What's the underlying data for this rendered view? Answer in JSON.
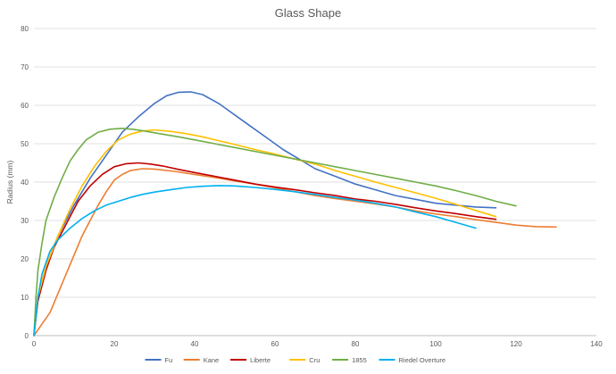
{
  "chart_data": {
    "type": "line",
    "title": "Glass Shape",
    "xlabel": "",
    "ylabel": "Radius (mm)",
    "xlim": [
      0,
      140
    ],
    "ylim": [
      0,
      80
    ],
    "x_ticks": [
      "0",
      "20",
      "40",
      "60",
      "80",
      "100",
      "120",
      "140"
    ],
    "y_ticks": [
      "0",
      "10",
      "20",
      "30",
      "40",
      "50",
      "60",
      "70",
      "80"
    ],
    "grid": "horizontal",
    "legend_position": "bottom",
    "series": [
      {
        "name": "Fu",
        "color": "#4472C4",
        "points": [
          [
            0,
            0
          ],
          [
            1,
            10
          ],
          [
            3,
            18
          ],
          [
            6,
            26
          ],
          [
            10,
            34
          ],
          [
            14,
            41
          ],
          [
            18,
            47
          ],
          [
            22,
            53
          ],
          [
            26,
            57
          ],
          [
            30,
            60.5
          ],
          [
            33,
            62.5
          ],
          [
            36,
            63.4
          ],
          [
            39,
            63.5
          ],
          [
            42,
            62.8
          ],
          [
            46,
            60.5
          ],
          [
            50,
            57.5
          ],
          [
            54,
            54.5
          ],
          [
            58,
            51.5
          ],
          [
            62,
            48.5
          ],
          [
            66,
            46
          ],
          [
            70,
            43.5
          ],
          [
            75,
            41.5
          ],
          [
            80,
            39.5
          ],
          [
            85,
            38
          ],
          [
            90,
            36.5
          ],
          [
            95,
            35.5
          ],
          [
            100,
            34.5
          ],
          [
            105,
            34
          ],
          [
            110,
            33.5
          ],
          [
            115,
            33.3
          ]
        ]
      },
      {
        "name": "Kane",
        "color": "#ED7D31",
        "points": [
          [
            0,
            0
          ],
          [
            2,
            3
          ],
          [
            4,
            6
          ],
          [
            6,
            11
          ],
          [
            8,
            16
          ],
          [
            10,
            21
          ],
          [
            12,
            26
          ],
          [
            14,
            30
          ],
          [
            16,
            34
          ],
          [
            18,
            37.5
          ],
          [
            20,
            40.5
          ],
          [
            22,
            42
          ],
          [
            24,
            43
          ],
          [
            27,
            43.5
          ],
          [
            30,
            43.4
          ],
          [
            35,
            42.8
          ],
          [
            40,
            42
          ],
          [
            45,
            41.2
          ],
          [
            50,
            40.3
          ],
          [
            55,
            39.5
          ],
          [
            60,
            38.5
          ],
          [
            65,
            37.5
          ],
          [
            70,
            36.5
          ],
          [
            75,
            35.7
          ],
          [
            80,
            35
          ],
          [
            85,
            34.3
          ],
          [
            90,
            33.5
          ],
          [
            95,
            32.5
          ],
          [
            100,
            31.7
          ],
          [
            105,
            31
          ],
          [
            110,
            30.2
          ],
          [
            115,
            29.5
          ],
          [
            120,
            28.8
          ],
          [
            125,
            28.4
          ],
          [
            130,
            28.3
          ]
        ]
      },
      {
        "name": "Liberte",
        "color": "#C00000",
        "points": [
          [
            0,
            0
          ],
          [
            1,
            9
          ],
          [
            3,
            17
          ],
          [
            5,
            23
          ],
          [
            8,
            29
          ],
          [
            11,
            35
          ],
          [
            14,
            39
          ],
          [
            17,
            42
          ],
          [
            20,
            44
          ],
          [
            23,
            44.8
          ],
          [
            26,
            45
          ],
          [
            29,
            44.7
          ],
          [
            32,
            44.2
          ],
          [
            36,
            43.3
          ],
          [
            40,
            42.5
          ],
          [
            45,
            41.5
          ],
          [
            50,
            40.5
          ],
          [
            55,
            39.5
          ],
          [
            60,
            38.7
          ],
          [
            65,
            38
          ],
          [
            70,
            37.2
          ],
          [
            75,
            36.5
          ],
          [
            80,
            35.6
          ],
          [
            85,
            35
          ],
          [
            90,
            34.2
          ],
          [
            95,
            33.3
          ],
          [
            100,
            32.5
          ],
          [
            105,
            31.8
          ],
          [
            110,
            31
          ],
          [
            115,
            30.3
          ]
        ]
      },
      {
        "name": "Cru",
        "color": "#FFC000",
        "points": [
          [
            0,
            0
          ],
          [
            1,
            10
          ],
          [
            3,
            18
          ],
          [
            6,
            26
          ],
          [
            9,
            33
          ],
          [
            12,
            39
          ],
          [
            15,
            44
          ],
          [
            18,
            48
          ],
          [
            21,
            51
          ],
          [
            24,
            52.5
          ],
          [
            27,
            53.3
          ],
          [
            30,
            53.6
          ],
          [
            34,
            53.2
          ],
          [
            38,
            52.6
          ],
          [
            42,
            51.8
          ],
          [
            46,
            50.8
          ],
          [
            50,
            49.8
          ],
          [
            55,
            48.5
          ],
          [
            60,
            47.3
          ],
          [
            65,
            46
          ],
          [
            70,
            44.7
          ],
          [
            75,
            43
          ],
          [
            80,
            41.5
          ],
          [
            85,
            40
          ],
          [
            90,
            38.6
          ],
          [
            95,
            37.2
          ],
          [
            100,
            35.8
          ],
          [
            105,
            34.2
          ],
          [
            110,
            32.6
          ],
          [
            115,
            31
          ]
        ]
      },
      {
        "name": "1855",
        "color": "#70AD47",
        "points": [
          [
            0,
            0
          ],
          [
            0.5,
            10
          ],
          [
            1,
            17
          ],
          [
            2,
            24
          ],
          [
            3,
            30
          ],
          [
            5,
            36
          ],
          [
            7,
            41
          ],
          [
            9,
            45.5
          ],
          [
            11,
            48.5
          ],
          [
            13,
            51
          ],
          [
            16,
            53
          ],
          [
            19,
            53.8
          ],
          [
            22,
            54
          ],
          [
            25,
            53.7
          ],
          [
            28,
            53.2
          ],
          [
            32,
            52.5
          ],
          [
            36,
            51.8
          ],
          [
            40,
            51
          ],
          [
            45,
            50
          ],
          [
            50,
            49
          ],
          [
            55,
            48
          ],
          [
            60,
            47
          ],
          [
            65,
            46
          ],
          [
            70,
            45
          ],
          [
            75,
            44
          ],
          [
            80,
            43
          ],
          [
            85,
            42
          ],
          [
            90,
            41
          ],
          [
            95,
            40
          ],
          [
            100,
            39
          ],
          [
            105,
            37.8
          ],
          [
            110,
            36.5
          ],
          [
            115,
            35
          ],
          [
            120,
            33.8
          ]
        ]
      },
      {
        "name": "Riedel Overture",
        "color": "#00B0F0",
        "points": [
          [
            0,
            0
          ],
          [
            1,
            10
          ],
          [
            2,
            16
          ],
          [
            4,
            22
          ],
          [
            6,
            25
          ],
          [
            9,
            28
          ],
          [
            12,
            30.5
          ],
          [
            15,
            32.5
          ],
          [
            18,
            34
          ],
          [
            21,
            35
          ],
          [
            24,
            36
          ],
          [
            27,
            36.8
          ],
          [
            30,
            37.4
          ],
          [
            34,
            38
          ],
          [
            38,
            38.6
          ],
          [
            42,
            38.9
          ],
          [
            46,
            39.1
          ],
          [
            50,
            39
          ],
          [
            55,
            38.6
          ],
          [
            60,
            38.1
          ],
          [
            65,
            37.5
          ],
          [
            70,
            36.8
          ],
          [
            75,
            36
          ],
          [
            80,
            35.3
          ],
          [
            85,
            34.5
          ],
          [
            90,
            33.5
          ],
          [
            95,
            32.2
          ],
          [
            100,
            31
          ],
          [
            105,
            29.5
          ],
          [
            110,
            28
          ]
        ]
      }
    ]
  }
}
